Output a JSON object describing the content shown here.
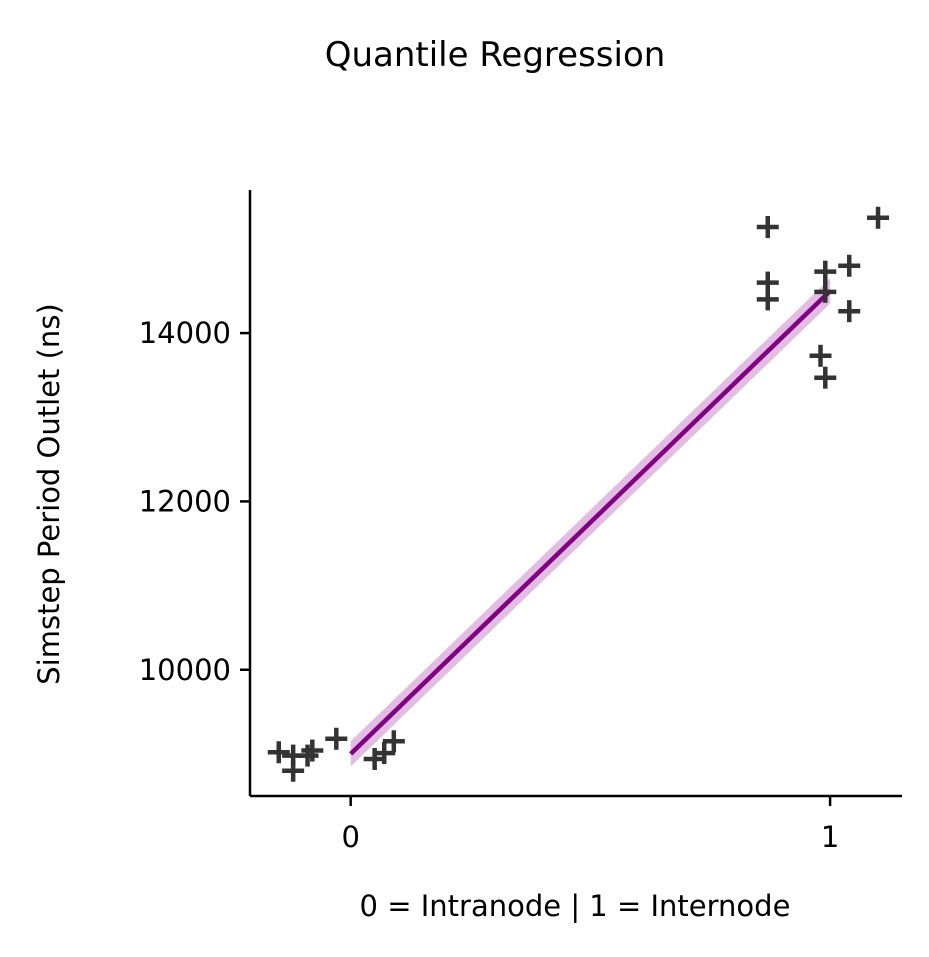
{
  "chart_data": {
    "type": "scatter",
    "title": "Quantile Regression",
    "xlabel": "0 = Intranode | 1 = Internode",
    "ylabel": "Simstep Period Outlet (ns)",
    "xlim": [
      -0.21,
      1.15
    ],
    "ylim": [
      8500,
      15700
    ],
    "xticks": [
      0,
      1
    ],
    "yticks": [
      10000,
      12000,
      14000
    ],
    "grid": false,
    "marker_color": "#333333",
    "line_color": "#800080",
    "band_color": "#d9a6db",
    "points": [
      {
        "x": -0.15,
        "y": 9020
      },
      {
        "x": -0.12,
        "y": 8980
      },
      {
        "x": -0.12,
        "y": 8800
      },
      {
        "x": -0.09,
        "y": 8980
      },
      {
        "x": -0.08,
        "y": 9040
      },
      {
        "x": -0.03,
        "y": 9180
      },
      {
        "x": 0.05,
        "y": 8940
      },
      {
        "x": 0.07,
        "y": 9010
      },
      {
        "x": 0.09,
        "y": 9150
      },
      {
        "x": 0.87,
        "y": 15260
      },
      {
        "x": 0.87,
        "y": 14600
      },
      {
        "x": 0.87,
        "y": 14400
      },
      {
        "x": 0.98,
        "y": 13730
      },
      {
        "x": 0.99,
        "y": 13470
      },
      {
        "x": 0.99,
        "y": 14730
      },
      {
        "x": 0.99,
        "y": 14490
      },
      {
        "x": 1.04,
        "y": 14800
      },
      {
        "x": 1.04,
        "y": 14260
      },
      {
        "x": 1.1,
        "y": 15370
      }
    ],
    "regression": {
      "x": [
        0,
        1
      ],
      "y": [
        9000,
        14500
      ],
      "lower": [
        8850,
        14350
      ],
      "upper": [
        9150,
        14650
      ]
    }
  }
}
